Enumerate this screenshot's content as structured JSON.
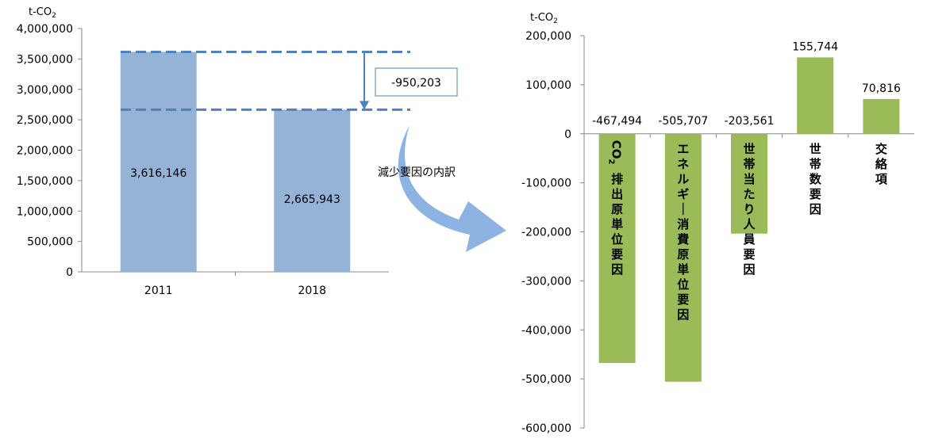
{
  "chart_data": [
    {
      "type": "bar",
      "unit_label": "t-CO",
      "unit_sub": "2",
      "categories": [
        "2011",
        "2018"
      ],
      "values": [
        3616146,
        2665943
      ],
      "value_labels": [
        "3,616,146",
        "2,665,943"
      ],
      "ylim": [
        0,
        4000000
      ],
      "yticks": [
        0,
        500000,
        1000000,
        1500000,
        2000000,
        2500000,
        3000000,
        3500000,
        4000000
      ],
      "ytick_labels": [
        "0",
        "500,000",
        "1,000,000",
        "1,500,000",
        "2,000,000",
        "2,500,000",
        "3,000,000",
        "3,500,000",
        "4,000,000"
      ],
      "bar_color": "#95b3d7",
      "difference_label": "-950,203",
      "reference_line_color": "#4f81bd",
      "grid": false
    },
    {
      "type": "bar",
      "unit_label": "t-CO",
      "unit_sub": "2",
      "categories": [
        "CO₂排出原単位要因",
        "エネルギー消費原単位要因",
        "世帯当たり人員要因",
        "世帯数要因",
        "交絡項"
      ],
      "category_labels": [
        {
          "pre": "CO",
          "sub": "2",
          "post": "排出原単位要因"
        },
        {
          "pre": "エネルギー消費原単位要因",
          "sub": "",
          "post": ""
        },
        {
          "pre": "世帯当たり人員要因",
          "sub": "",
          "post": ""
        },
        {
          "pre": "世帯数要因",
          "sub": "",
          "post": ""
        },
        {
          "pre": "交絡項",
          "sub": "",
          "post": ""
        }
      ],
      "values": [
        -467494,
        -505707,
        -203561,
        155744,
        70816
      ],
      "value_labels": [
        "-467,494",
        "-505,707",
        "-203,561",
        "155,744",
        "70,816"
      ],
      "ylim": [
        -600000,
        200000
      ],
      "yticks": [
        -600000,
        -500000,
        -400000,
        -300000,
        -200000,
        -100000,
        0,
        100000,
        200000
      ],
      "ytick_labels": [
        "-600,000",
        "-500,000",
        "-400,000",
        "-300,000",
        "-200,000",
        "-100,000",
        "0",
        "100,000",
        "200,000"
      ],
      "bar_color": "#9bbb59",
      "grid": false
    }
  ],
  "annotation": {
    "breakdown_label": "減少要因の内訳",
    "arrow_color": "#8db3e2"
  }
}
